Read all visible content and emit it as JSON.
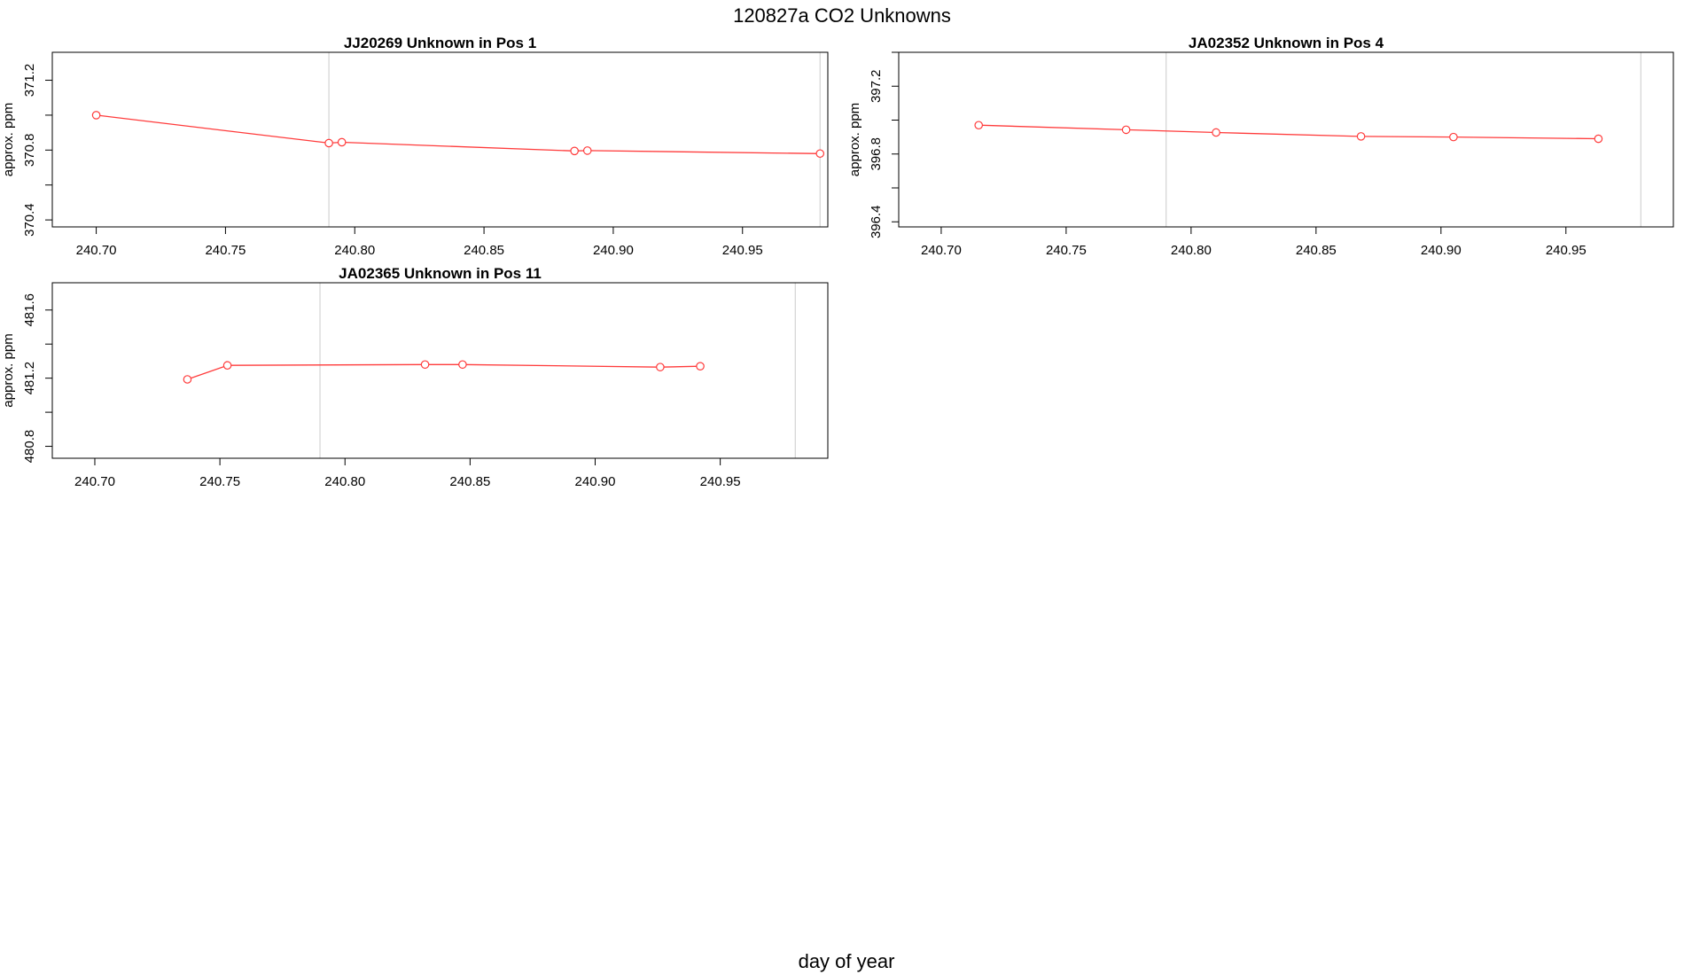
{
  "figure": {
    "title": "120827a  CO2 Unknowns",
    "xlabel": "day of year"
  },
  "colors": {
    "series": "#ff3b3b",
    "ref_line": "#d3d3d3",
    "axis": "#000000"
  },
  "chart_data": [
    {
      "type": "line",
      "title": "JJ20269    Unknown in Pos 1",
      "ylabel": "approx. ppm",
      "xlim": [
        240.683,
        240.983
      ],
      "ylim": [
        370.36,
        371.36
      ],
      "xticks": [
        "240.70",
        "240.75",
        "240.80",
        "240.85",
        "240.90",
        "240.95"
      ],
      "yticks": [
        "370.4",
        "370.8",
        "371.2"
      ],
      "ref_lines_x": [
        240.79,
        240.98
      ],
      "x": [
        240.7,
        240.79,
        240.795,
        240.885,
        240.89,
        240.98
      ],
      "y": [
        371.0,
        370.84,
        370.845,
        370.795,
        370.797,
        370.78
      ]
    },
    {
      "type": "line",
      "title": "JA02352    Unknown in Pos 4",
      "ylabel": "approx. ppm",
      "xlim": [
        240.683,
        240.993
      ],
      "ylim": [
        396.37,
        397.4
      ],
      "xticks": [
        "240.70",
        "240.75",
        "240.80",
        "240.85",
        "240.90",
        "240.95"
      ],
      "yticks": [
        "396.4",
        "396.8",
        "397.2"
      ],
      "ref_lines_x": [
        240.79,
        240.98
      ],
      "x": [
        240.715,
        240.774,
        240.81,
        240.868,
        240.905,
        240.963
      ],
      "y": [
        396.97,
        396.943,
        396.927,
        396.904,
        396.9,
        396.89
      ]
    },
    {
      "type": "line",
      "title": "JA02365    Unknown in Pos 11",
      "ylabel": "approx. ppm",
      "xlim": [
        240.683,
        240.993
      ],
      "ylim": [
        480.73,
        481.76
      ],
      "xticks": [
        "240.70",
        "240.75",
        "240.80",
        "240.85",
        "240.90",
        "240.95"
      ],
      "yticks": [
        "480.8",
        "481.2",
        "481.6"
      ],
      "ref_lines_x": [
        240.79,
        240.98
      ],
      "x": [
        240.737,
        240.753,
        240.832,
        240.847,
        240.926,
        240.942
      ],
      "y": [
        481.193,
        481.275,
        481.28,
        481.28,
        481.265,
        481.27
      ]
    }
  ]
}
